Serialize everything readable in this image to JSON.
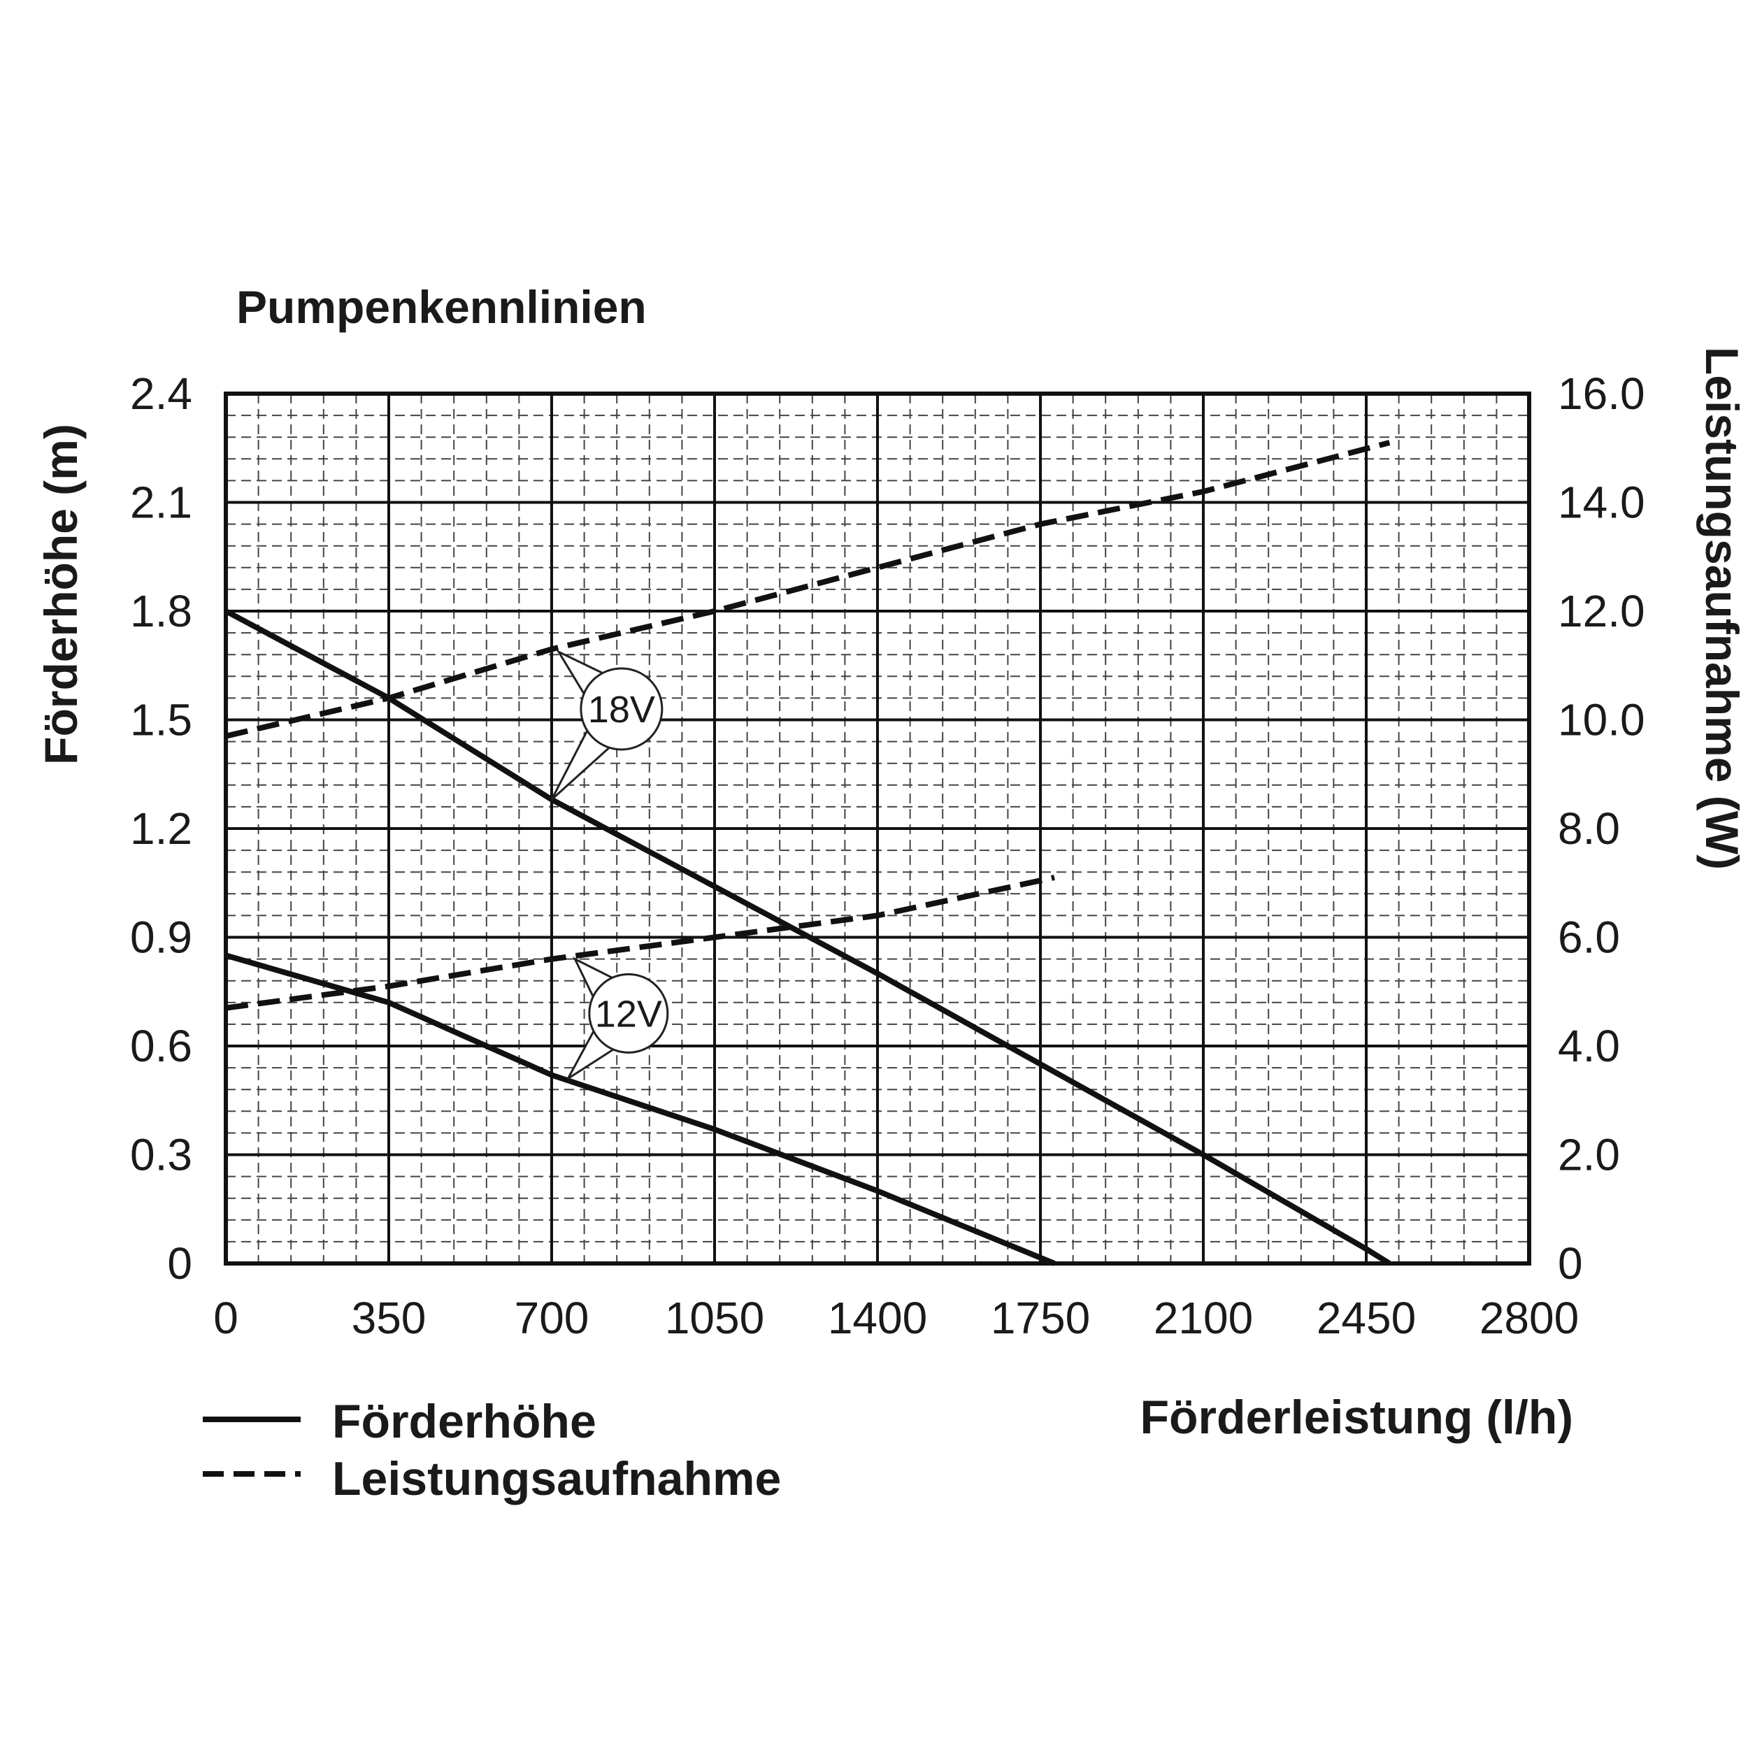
{
  "chart_data": {
    "type": "line",
    "title": "Pumpenkennlinien",
    "xlabel": "Förderleistung (l/h)",
    "ylabel_left": "Förderhöhe (m)",
    "ylabel_right": "Leistungsaufnahme (W)",
    "xlim": [
      0,
      2800
    ],
    "ylim_left": [
      0,
      2.4
    ],
    "ylim_right": [
      0,
      16
    ],
    "x_ticks": [
      "0",
      "350",
      "700",
      "1050",
      "1400",
      "1750",
      "2100",
      "2450",
      "2800"
    ],
    "y_left_ticks": [
      "0",
      "0.3",
      "0.6",
      "0.9",
      "1.2",
      "1.5",
      "1.8",
      "2.1",
      "2.4"
    ],
    "y_right_ticks": [
      "0",
      "2.0",
      "4.0",
      "6.0",
      "8.0",
      "10.0",
      "12.0",
      "14.0",
      "16.0"
    ],
    "grid": true,
    "legend_position": "bottom-left",
    "legend": [
      {
        "label": "Förderhöhe",
        "style": "solid"
      },
      {
        "label": "Leistungsaufnahme",
        "style": "dashed"
      }
    ],
    "series": [
      {
        "group": "18V",
        "quantity": "Förderhöhe",
        "axis": "left",
        "style": "solid",
        "x": [
          0,
          350,
          700,
          1050,
          1400,
          1750,
          2100,
          2450,
          2500
        ],
        "y": [
          1.8,
          1.56,
          1.28,
          1.04,
          0.8,
          0.55,
          0.3,
          0.04,
          0
        ]
      },
      {
        "group": "18V",
        "quantity": "Leistungsaufnahme",
        "axis": "right",
        "style": "dashed",
        "x": [
          0,
          350,
          700,
          1050,
          1400,
          1750,
          2100,
          2500
        ],
        "y": [
          9.7,
          10.4,
          11.3,
          12.0,
          12.8,
          13.6,
          14.2,
          15.1
        ]
      },
      {
        "group": "12V",
        "quantity": "Förderhöhe",
        "axis": "left",
        "style": "solid",
        "x": [
          0,
          350,
          700,
          1050,
          1400,
          1780
        ],
        "y": [
          0.85,
          0.72,
          0.52,
          0.37,
          0.2,
          0
        ]
      },
      {
        "group": "12V",
        "quantity": "Leistungsaufnahme",
        "axis": "right",
        "style": "dashed",
        "x": [
          0,
          350,
          700,
          1050,
          1400,
          1780
        ],
        "y": [
          4.7,
          5.1,
          5.6,
          6.0,
          6.4,
          7.1
        ]
      }
    ],
    "annotations": [
      {
        "text": "18V"
      },
      {
        "text": "12V"
      }
    ]
  }
}
